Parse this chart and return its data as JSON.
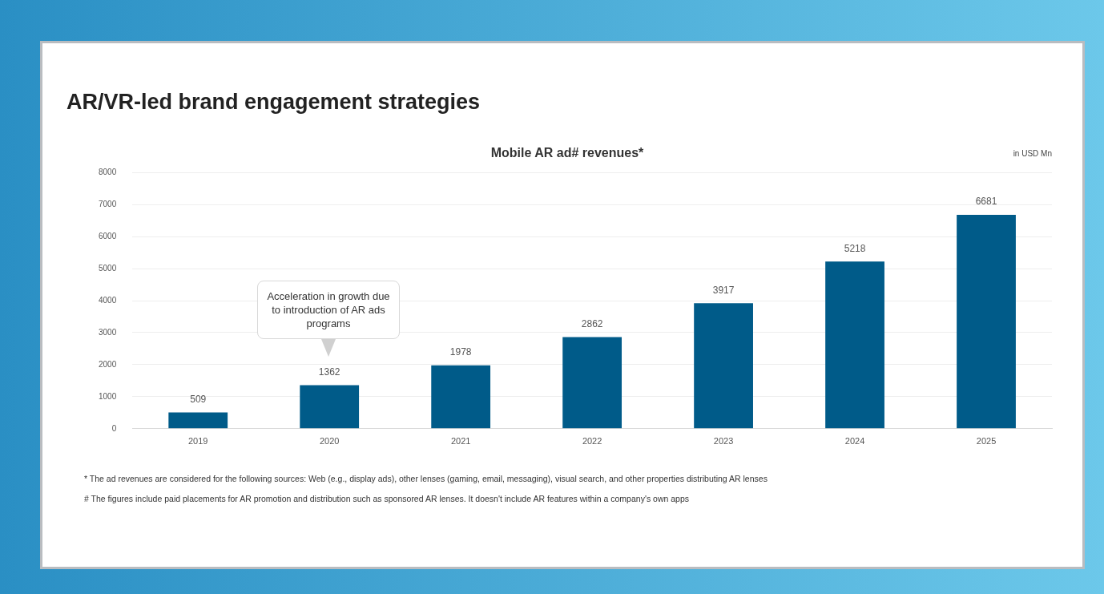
{
  "chart_data": {
    "type": "bar",
    "title": "AR/VR-led brand engagement strategies",
    "subtitle": "Mobile AR ad# revenues*",
    "ylabel": "in USD Mn",
    "categories": [
      "2019",
      "2020",
      "2021",
      "2022",
      "2023",
      "2024",
      "2025"
    ],
    "values": [
      509,
      1362,
      1978,
      2862,
      3917,
      5218,
      6681
    ],
    "color": "#005b89",
    "ylim": [
      0,
      8000
    ],
    "yticks": [
      0,
      1000,
      2000,
      3000,
      4000,
      5000,
      6000,
      7000,
      8000
    ],
    "grid": "y",
    "legend": false,
    "data_labels": true,
    "annotations": [
      "Acceleration in growth due to introduction of AR ads programs",
      "* The ad revenues are considered for the following sources: Web (e.g., display ads), other lenses (gaming, email, messaging), visual search, and other properties distributing AR lenses",
      "# The figures include paid placements for AR promotion and distribution such as sponsored AR lenses. It doesn't include AR features within a company's own apps"
    ]
  }
}
